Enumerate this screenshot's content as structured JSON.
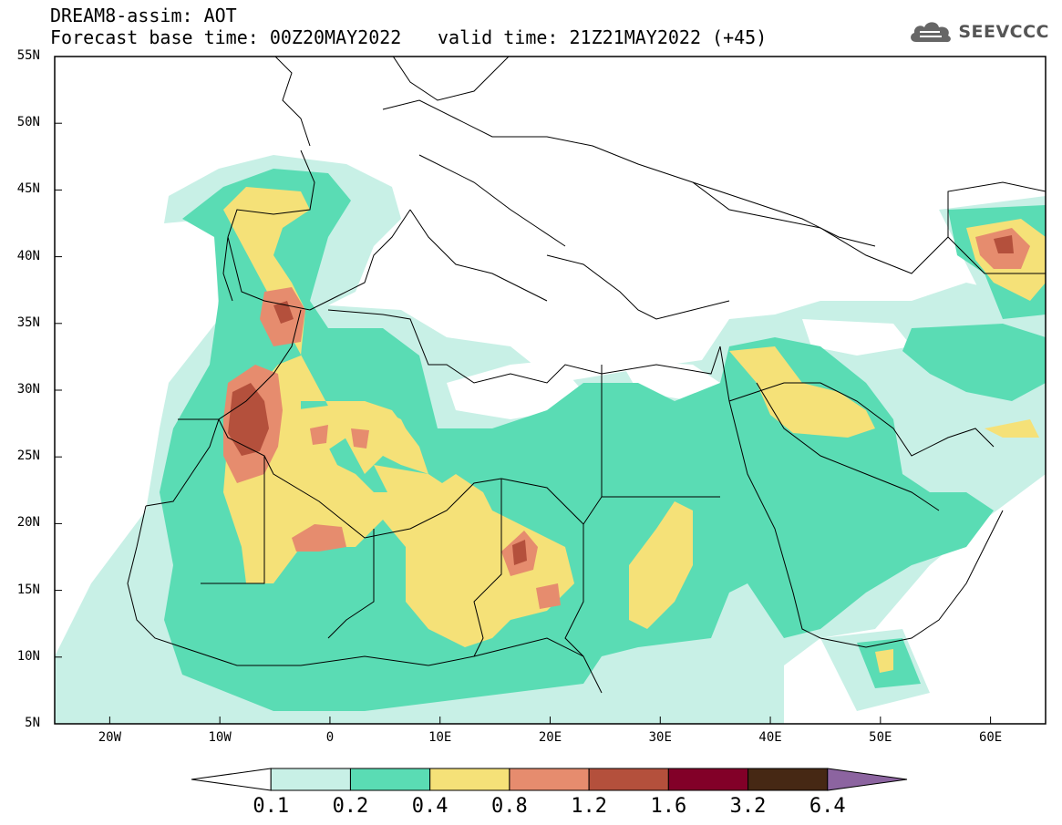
{
  "header": {
    "line1": "DREAM8-assim: AOT",
    "line2_left": "Forecast base time: 00Z20MAY2022",
    "line2_right": "valid time: 21Z21MAY2022 (+45)"
  },
  "logo": {
    "text": "SEEVCCC",
    "icon": "cloud-icon"
  },
  "map": {
    "lat_labels": [
      "55N",
      "50N",
      "45N",
      "40N",
      "35N",
      "30N",
      "25N",
      "20N",
      "15N",
      "10N",
      "5N"
    ],
    "lon_labels": [
      "20W",
      "10W",
      "0",
      "10E",
      "20E",
      "30E",
      "40E",
      "50E",
      "60E"
    ],
    "lat_range": [
      5,
      55
    ],
    "lon_range": [
      -25,
      65
    ]
  },
  "colorbar": {
    "labels": [
      "0.1",
      "0.2",
      "0.4",
      "0.8",
      "1.2",
      "1.6",
      "3.2",
      "6.4"
    ],
    "colors": [
      "#ffffff",
      "#c8f0e6",
      "#5adcb4",
      "#f5e178",
      "#e68c6e",
      "#b4503c",
      "#820028",
      "#462814",
      "#8c64a0"
    ]
  },
  "legend_colors": {
    "c1": "#c8f0e6",
    "c2": "#5adcb4",
    "c3": "#f5e178",
    "c4": "#e68c6e",
    "c5": "#b4503c"
  }
}
